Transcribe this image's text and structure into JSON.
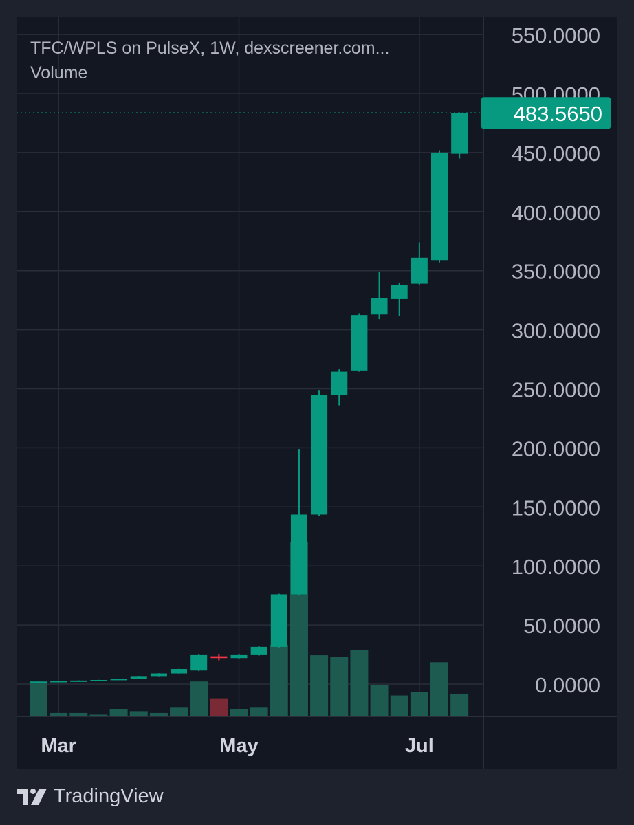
{
  "header": {
    "title": "TFC/WPLS on PulseX, 1W, dexscreener.com...",
    "volume_label": "Volume"
  },
  "footer": {
    "brand": "TradingView"
  },
  "last_price": "483.5650",
  "colors": {
    "up": "#089981",
    "down": "#f23645",
    "up_volume": "#1d5a50",
    "down_volume": "#7a2a35",
    "grid": "#2a2e39",
    "text": "#b2b5be",
    "background": "#131722"
  },
  "chart_data": {
    "type": "candlestick",
    "title": "TFC/WPLS on PulseX, 1W, dexscreener.com...",
    "price_axis": {
      "ticks": [
        "550.0000",
        "500.0000",
        "450.0000",
        "400.0000",
        "350.0000",
        "300.0000",
        "250.0000",
        "200.0000",
        "150.0000",
        "100.0000",
        "50.0000",
        "0.0000"
      ],
      "range": [
        0,
        550
      ]
    },
    "time_axis": {
      "labels": [
        "Mar",
        "May",
        "Jul"
      ],
      "label_bar_index": [
        1,
        10,
        19
      ]
    },
    "candles": [
      {
        "o": 1.5,
        "h": 2.6,
        "l": 1.3,
        "c": 2.2
      },
      {
        "o": 2.2,
        "h": 2.9,
        "l": 2.0,
        "c": 2.6
      },
      {
        "o": 2.6,
        "h": 3.2,
        "l": 2.4,
        "c": 3.0
      },
      {
        "o": 3.0,
        "h": 3.6,
        "l": 2.8,
        "c": 3.5
      },
      {
        "o": 3.5,
        "h": 4.6,
        "l": 3.3,
        "c": 4.4
      },
      {
        "o": 4.4,
        "h": 6.5,
        "l": 4.2,
        "c": 6.2
      },
      {
        "o": 6.2,
        "h": 9.2,
        "l": 6.0,
        "c": 9.0
      },
      {
        "o": 9.0,
        "h": 13.0,
        "l": 8.8,
        "c": 12.8
      },
      {
        "o": 11.5,
        "h": 25.0,
        "l": 11.0,
        "c": 24.5
      },
      {
        "o": 23.5,
        "h": 25.5,
        "l": 20.0,
        "c": 22.0
      },
      {
        "o": 22.0,
        "h": 25.5,
        "l": 21.5,
        "c": 24.5
      },
      {
        "o": 24.5,
        "h": 32.0,
        "l": 24.0,
        "c": 31.5
      },
      {
        "o": 31.5,
        "h": 76.5,
        "l": 31.0,
        "c": 76.0
      },
      {
        "o": 76.0,
        "h": 199.0,
        "l": 75.0,
        "c": 143.5
      },
      {
        "o": 143.5,
        "h": 249.0,
        "l": 142.0,
        "c": 245.0
      },
      {
        "o": 245.0,
        "h": 266.5,
        "l": 236.0,
        "c": 264.5
      },
      {
        "o": 265.5,
        "h": 314.0,
        "l": 264.5,
        "c": 312.5
      },
      {
        "o": 313.0,
        "h": 349.0,
        "l": 309.0,
        "c": 327.0
      },
      {
        "o": 326.0,
        "h": 340.0,
        "l": 312.0,
        "c": 338.0
      },
      {
        "o": 339.0,
        "h": 374.0,
        "l": 338.0,
        "c": 361.0
      },
      {
        "o": 359.0,
        "h": 452.0,
        "l": 357.0,
        "c": 450.0
      },
      {
        "o": 449.0,
        "h": 484.0,
        "l": 445.0,
        "c": 483.565
      }
    ],
    "volume": [
      19,
      2,
      2,
      1,
      4,
      3,
      2,
      5,
      20,
      10,
      4,
      5,
      41,
      100,
      35,
      34,
      38,
      18,
      12,
      14,
      31,
      13
    ],
    "volume_up": [
      true,
      true,
      true,
      true,
      true,
      true,
      true,
      true,
      true,
      false,
      true,
      true,
      true,
      true,
      true,
      true,
      true,
      true,
      true,
      true,
      true,
      true
    ]
  }
}
